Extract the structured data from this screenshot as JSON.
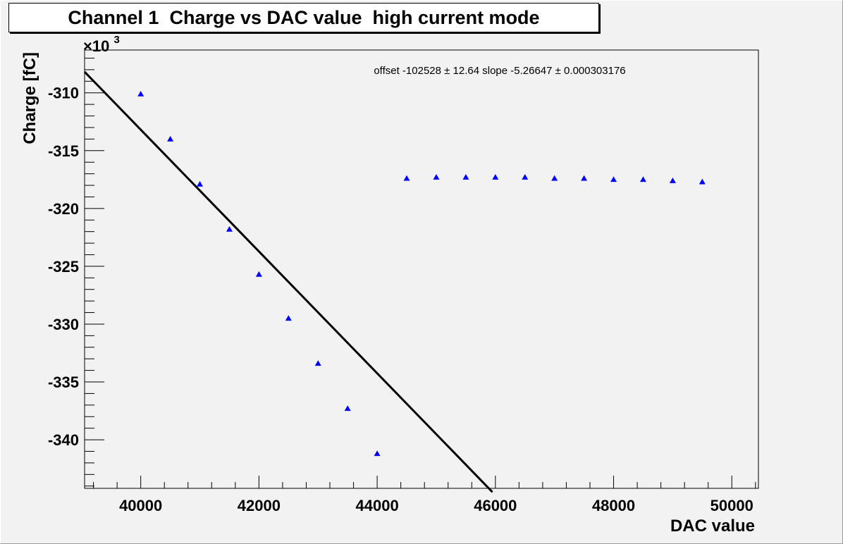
{
  "chart_data": {
    "type": "scatter",
    "title": "Channel 1  Charge vs DAC value  high current mode",
    "xlabel": "DAC value",
    "ylabel": "Charge [fC]",
    "y_multiplier_label": "×10",
    "y_multiplier_exponent": "3",
    "xlim": [
      39050,
      50450
    ],
    "ylim": [
      -344.2,
      -306.3
    ],
    "x_ticks": [
      40000,
      42000,
      44000,
      46000,
      48000,
      50000
    ],
    "x_tick_labels": [
      "40000",
      "42000",
      "44000",
      "46000",
      "48000",
      "50000"
    ],
    "y_ticks": [
      -310,
      -315,
      -320,
      -325,
      -330,
      -335,
      -340
    ],
    "y_tick_labels": [
      "-310",
      "-315",
      "-320",
      "-325",
      "-330",
      "-335",
      "-340"
    ],
    "grid": false,
    "marker_color": "#0000ff",
    "fit_color": "#000000",
    "series": [
      {
        "x": [
          40000,
          40500,
          41000,
          41500,
          42000,
          42500,
          43000,
          43500,
          44000,
          44500,
          45000,
          45500,
          46000,
          46500,
          47000,
          47500,
          48000,
          48500,
          49000,
          49500
        ],
        "y": [
          -310.1,
          -314.0,
          -317.9,
          -321.8,
          -325.7,
          -329.5,
          -333.4,
          -337.3,
          -341.2,
          -317.4,
          -317.3,
          -317.3,
          -317.3,
          -317.3,
          -317.4,
          -317.4,
          -317.5,
          -317.5,
          -317.6,
          -317.7
        ]
      }
    ],
    "fit": {
      "offset": -102528,
      "slope": -5.26647,
      "x_range": [
        39050,
        45950
      ]
    },
    "fit_label": "offset -102528 ± 12.64   slope -5.26647 ± 0.000303176"
  }
}
